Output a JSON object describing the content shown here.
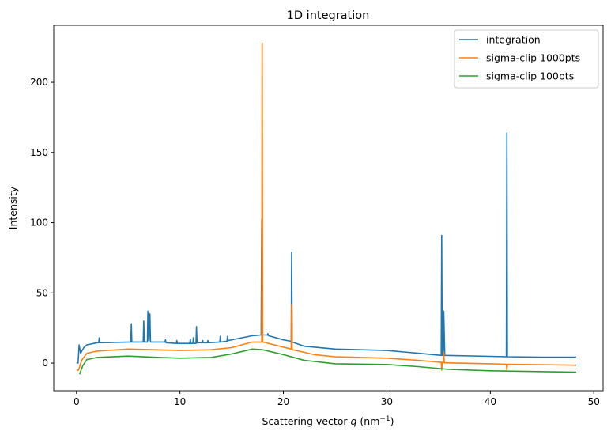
{
  "chart_data": {
    "type": "line",
    "title": "1D integration",
    "xlabel": "Scattering vector q (nm^-1)",
    "xlabel_parts": {
      "prefix": "Scattering vector ",
      "var": "q",
      "open": " (nm",
      "sup": "−1",
      "close": ")"
    },
    "ylabel": "Intensity",
    "xlim": [
      -2.2,
      50.9
    ],
    "ylim": [
      -19.7,
      240.6
    ],
    "xticks": [
      0,
      10,
      20,
      30,
      40,
      50
    ],
    "yticks": [
      0,
      50,
      100,
      150,
      200
    ],
    "grid": false,
    "legend": "top-right",
    "series": [
      {
        "name": "integration",
        "color": "#1f77b4",
        "points": [
          [
            0,
            0
          ],
          [
            0.15,
            0
          ],
          [
            0.25,
            13
          ],
          [
            0.4,
            7
          ],
          [
            0.7,
            11
          ],
          [
            1,
            13
          ],
          [
            2,
            14.5
          ],
          [
            2.15,
            14.5
          ],
          [
            2.2,
            18
          ],
          [
            2.25,
            14.5
          ],
          [
            5.25,
            15
          ],
          [
            5.3,
            28
          ],
          [
            5.35,
            15
          ],
          [
            6.45,
            15
          ],
          [
            6.5,
            30
          ],
          [
            6.55,
            15
          ],
          [
            6.85,
            15
          ],
          [
            6.9,
            37
          ],
          [
            7.0,
            16
          ],
          [
            7.1,
            35
          ],
          [
            7.15,
            15
          ],
          [
            8.55,
            15
          ],
          [
            8.6,
            16.5
          ],
          [
            8.65,
            14.5
          ],
          [
            9.65,
            14
          ],
          [
            9.7,
            16
          ],
          [
            9.75,
            14
          ],
          [
            10.95,
            14
          ],
          [
            11,
            17
          ],
          [
            11.05,
            14
          ],
          [
            11.25,
            14
          ],
          [
            11.3,
            18
          ],
          [
            11.35,
            14
          ],
          [
            11.55,
            14
          ],
          [
            11.6,
            26
          ],
          [
            11.65,
            14.5
          ],
          [
            12.15,
            14.5
          ],
          [
            12.2,
            16
          ],
          [
            12.25,
            14.5
          ],
          [
            12.65,
            14.5
          ],
          [
            12.7,
            16
          ],
          [
            12.75,
            14.5
          ],
          [
            13.85,
            15
          ],
          [
            13.9,
            19
          ],
          [
            13.95,
            15
          ],
          [
            14.55,
            15.5
          ],
          [
            14.6,
            19
          ],
          [
            14.65,
            16
          ],
          [
            17,
            19.5
          ],
          [
            17.85,
            20
          ],
          [
            17.9,
            102
          ],
          [
            17.95,
            20
          ],
          [
            18.45,
            20
          ],
          [
            18.5,
            21
          ],
          [
            18.55,
            19.5
          ],
          [
            20,
            16.5
          ],
          [
            20.75,
            15.5
          ],
          [
            20.8,
            79
          ],
          [
            20.85,
            15
          ],
          [
            22,
            12
          ],
          [
            25,
            10
          ],
          [
            30,
            9
          ],
          [
            33,
            7
          ],
          [
            35.25,
            5.5
          ],
          [
            35.3,
            91
          ],
          [
            35.35,
            5.5
          ],
          [
            35.45,
            5.5
          ],
          [
            35.5,
            37
          ],
          [
            35.6,
            5.5
          ],
          [
            40,
            4.8
          ],
          [
            41.55,
            4.5
          ],
          [
            41.6,
            164
          ],
          [
            41.65,
            4.5
          ],
          [
            45,
            4.2
          ],
          [
            48.3,
            4.2
          ]
        ]
      },
      {
        "name": "sigma-clip 1000pts",
        "color": "#ff7f0e",
        "points": [
          [
            0,
            -5
          ],
          [
            0.2,
            -5
          ],
          [
            0.5,
            2
          ],
          [
            1,
            7
          ],
          [
            2,
            8.5
          ],
          [
            5,
            10
          ],
          [
            10,
            9
          ],
          [
            13,
            9.5
          ],
          [
            15,
            11
          ],
          [
            17,
            15
          ],
          [
            17.9,
            15
          ],
          [
            17.95,
            228
          ],
          [
            18.0,
            15
          ],
          [
            20.75,
            10
          ],
          [
            20.8,
            42
          ],
          [
            20.85,
            9.5
          ],
          [
            21.5,
            8.5
          ],
          [
            23,
            6
          ],
          [
            25,
            4.5
          ],
          [
            30,
            3.5
          ],
          [
            33,
            2
          ],
          [
            35.25,
            0.5
          ],
          [
            35.3,
            -5
          ],
          [
            35.35,
            0.5
          ],
          [
            35.45,
            0.5
          ],
          [
            35.5,
            8
          ],
          [
            35.55,
            0.2
          ],
          [
            40,
            -0.5
          ],
          [
            41.55,
            -0.8
          ],
          [
            41.6,
            -5
          ],
          [
            41.65,
            -0.8
          ],
          [
            48.3,
            -1.5
          ]
        ]
      },
      {
        "name": "sigma-clip 100pts",
        "color": "#2ca02c",
        "points": [
          [
            0.3,
            -8
          ],
          [
            0.6,
            -2
          ],
          [
            1,
            2.5
          ],
          [
            2,
            4
          ],
          [
            5,
            5
          ],
          [
            8,
            4
          ],
          [
            10,
            3.5
          ],
          [
            13,
            4
          ],
          [
            15,
            6.5
          ],
          [
            17,
            10
          ],
          [
            18,
            9.5
          ],
          [
            20,
            6
          ],
          [
            22,
            2
          ],
          [
            25,
            -0.5
          ],
          [
            30,
            -1
          ],
          [
            33,
            -2.5
          ],
          [
            36,
            -4.5
          ],
          [
            40,
            -5.5
          ],
          [
            48.3,
            -6.5
          ]
        ]
      }
    ]
  }
}
